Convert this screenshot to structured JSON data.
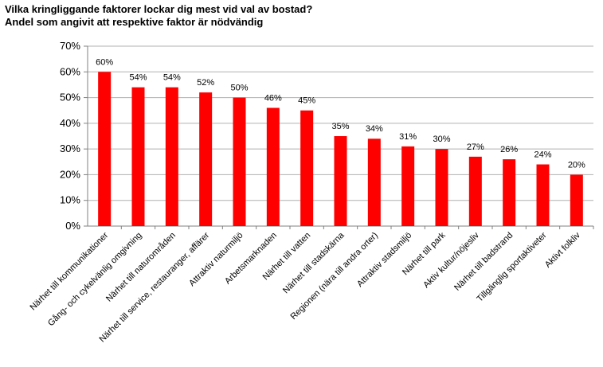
{
  "chart_data": {
    "type": "bar",
    "title": "Vilka kringliggande faktorer lockar dig mest vid val av bostad?",
    "subtitle": "Andel som angivit att respektive faktor är nödvändig",
    "categories": [
      "Närhet till kommunikationer",
      "Gång- och cykelvänlig omgivning",
      "Närhet till naturområden",
      "Närhet till service, restauranger, affärer",
      "Attraktiv naturmiljö",
      "Arbetsmarknaden",
      "Närhet till vatten",
      "Närhet till stadskärna",
      "Regionen (nära till andra orter)",
      "Attraktiv stadsmiljö",
      "Närhet till park",
      "Aktiv kultur/nöjesliv",
      "Närhet till badstrand",
      "Tillgänglig sportaktiveter",
      "Aktivt folkliv"
    ],
    "values": [
      60,
      54,
      54,
      52,
      50,
      46,
      45,
      35,
      34,
      31,
      30,
      27,
      26,
      24,
      20
    ],
    "data_labels": [
      "60%",
      "54%",
      "54%",
      "52%",
      "50%",
      "46%",
      "45%",
      "35%",
      "34%",
      "31%",
      "30%",
      "27%",
      "26%",
      "24%",
      "20%"
    ],
    "ylim": [
      0,
      70
    ],
    "yticks": [
      0,
      10,
      20,
      30,
      40,
      50,
      60,
      70
    ],
    "ytick_labels": [
      "0%",
      "10%",
      "20%",
      "30%",
      "40%",
      "50%",
      "60%",
      "70%"
    ],
    "xlabel": "",
    "ylabel": "",
    "grid": true,
    "legend": "none",
    "bar_color": "#ff0000",
    "grid_color": "#b0b0b0",
    "axis_color": "#808080"
  }
}
